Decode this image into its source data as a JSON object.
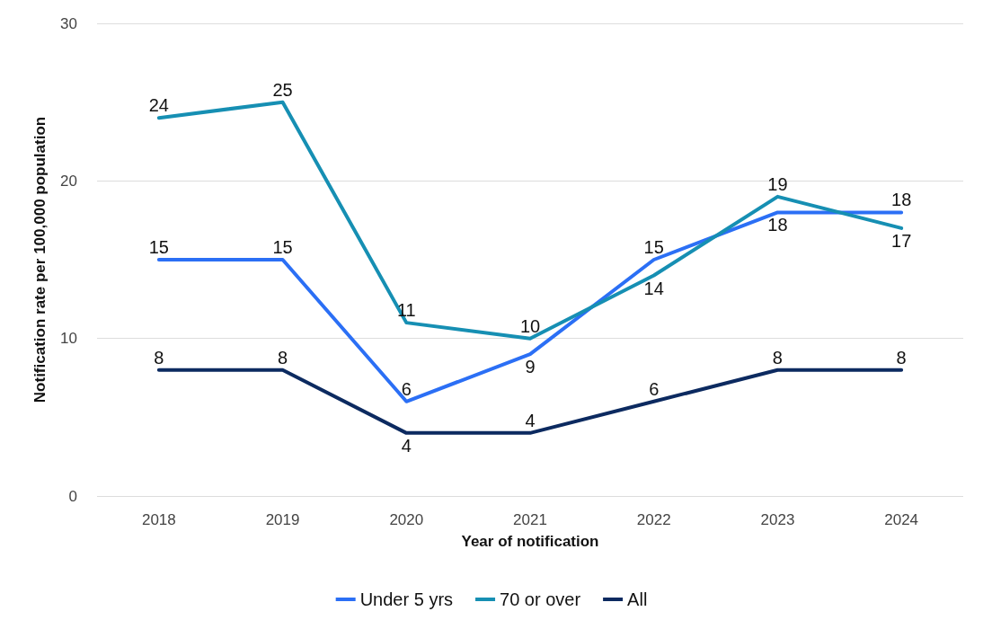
{
  "chart_data": {
    "type": "line",
    "xlabel": "Year of notification",
    "ylabel": "Notification rate per 100,000 population",
    "categories": [
      "2018",
      "2019",
      "2020",
      "2021",
      "2022",
      "2023",
      "2024"
    ],
    "series": [
      {
        "name": "Under 5 yrs",
        "color": "#2b6ff5",
        "values": [
          15,
          15,
          6,
          9,
          15,
          18,
          18
        ]
      },
      {
        "name": "70 or over",
        "color": "#168fb3",
        "values": [
          24,
          25,
          11,
          10,
          14,
          19,
          17
        ]
      },
      {
        "name": "All",
        "color": "#0c2a60",
        "values": [
          8,
          8,
          4,
          4,
          6,
          8,
          8
        ]
      }
    ],
    "ylim": [
      0,
      30
    ],
    "yticks": [
      0,
      10,
      20,
      30
    ],
    "grid": "y",
    "legend": "bottom",
    "data_labels": true,
    "marker": "none",
    "line_style": "solid"
  }
}
